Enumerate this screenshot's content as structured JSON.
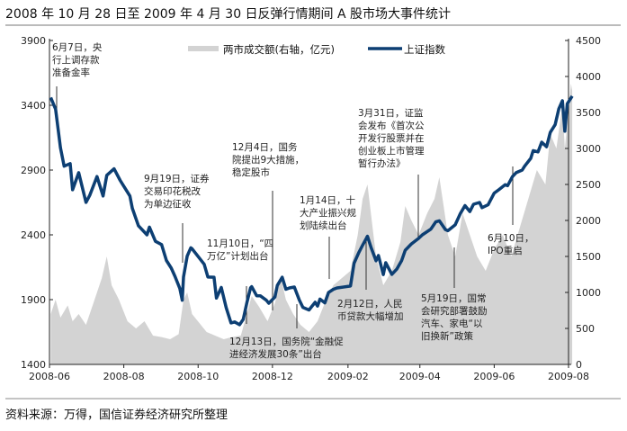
{
  "chart_data": {
    "type": "line",
    "title": "2008 年 10 月 28 日至 2009 年 4 月 30 日反弹行情期间 A 股市场大事件统计",
    "source": "资料来源：万得，国信证券经济研究所整理",
    "x_ticks": [
      "2008-06",
      "2008-08",
      "2008-10",
      "2008-12",
      "2009-02",
      "2009-04",
      "2009-06",
      "2009-08"
    ],
    "y_left": {
      "ticks": [
        "1400",
        "1900",
        "2400",
        "2900",
        "3400",
        "3900"
      ],
      "range": [
        1400,
        3900
      ]
    },
    "y_right": {
      "ticks": [
        "0",
        "500",
        "1000",
        "1500",
        "2000",
        "2500",
        "3000",
        "3500",
        "4000",
        "4500"
      ],
      "range": [
        0,
        4500
      ]
    },
    "legend": {
      "placement": "top",
      "volume_label": "两市成交额(右轴，亿元)",
      "index_label": "上证指数"
    },
    "colors": {
      "index": "#0d3f73",
      "volume": "#d3d3d3"
    },
    "series": [
      {
        "name": "上证指数",
        "axis": "left",
        "type": "line",
        "points": [
          [
            "2008-06-02",
            3460
          ],
          [
            "2008-06-06",
            3370
          ],
          [
            "2008-06-10",
            3072
          ],
          [
            "2008-06-13",
            2930
          ],
          [
            "2008-06-18",
            2950
          ],
          [
            "2008-06-20",
            2748
          ],
          [
            "2008-06-25",
            2880
          ],
          [
            "2008-07-01",
            2651
          ],
          [
            "2008-07-04",
            2704
          ],
          [
            "2008-07-10",
            2850
          ],
          [
            "2008-07-15",
            2700
          ],
          [
            "2008-07-18",
            2860
          ],
          [
            "2008-07-24",
            2910
          ],
          [
            "2008-07-29",
            2820
          ],
          [
            "2008-08-01",
            2776
          ],
          [
            "2008-08-06",
            2700
          ],
          [
            "2008-08-08",
            2605
          ],
          [
            "2008-08-13",
            2470
          ],
          [
            "2008-08-20",
            2400
          ],
          [
            "2008-08-22",
            2460
          ],
          [
            "2008-08-27",
            2350
          ],
          [
            "2008-09-01",
            2325
          ],
          [
            "2008-09-05",
            2202
          ],
          [
            "2008-09-09",
            2143
          ],
          [
            "2008-09-12",
            2080
          ],
          [
            "2008-09-16",
            1986
          ],
          [
            "2008-09-18",
            1896
          ],
          [
            "2008-09-19",
            2075
          ],
          [
            "2008-09-22",
            2236
          ],
          [
            "2008-09-25",
            2300
          ],
          [
            "2008-09-26",
            2293
          ],
          [
            "2008-10-06",
            2173
          ],
          [
            "2008-10-09",
            2074
          ],
          [
            "2008-10-14",
            2073
          ],
          [
            "2008-10-16",
            1912
          ],
          [
            "2008-10-20",
            1994
          ],
          [
            "2008-10-24",
            1839
          ],
          [
            "2008-10-28",
            1720
          ],
          [
            "2008-10-31",
            1728
          ],
          [
            "2008-11-04",
            1706
          ],
          [
            "2008-11-07",
            1748
          ],
          [
            "2008-11-10",
            1875
          ],
          [
            "2008-11-13",
            1990
          ],
          [
            "2008-11-14",
            2000
          ],
          [
            "2008-11-18",
            1930
          ],
          [
            "2008-11-21",
            1930
          ],
          [
            "2008-11-26",
            1895
          ],
          [
            "2008-11-28",
            1872
          ],
          [
            "2008-12-03",
            1920
          ],
          [
            "2008-12-05",
            2010
          ],
          [
            "2008-12-09",
            2073
          ],
          [
            "2008-12-12",
            1980
          ],
          [
            "2008-12-15",
            1990
          ],
          [
            "2008-12-19",
            1997
          ],
          [
            "2008-12-23",
            1897
          ],
          [
            "2008-12-26",
            1840
          ],
          [
            "2008-12-31",
            1820
          ],
          [
            "2009-01-05",
            1880
          ],
          [
            "2009-01-07",
            1850
          ],
          [
            "2009-01-09",
            1904
          ],
          [
            "2009-01-13",
            1875
          ],
          [
            "2009-01-16",
            1955
          ],
          [
            "2009-01-20",
            1980
          ],
          [
            "2009-01-23",
            1990
          ],
          [
            "2009-02-03",
            2005
          ],
          [
            "2009-02-06",
            2181
          ],
          [
            "2009-02-10",
            2265
          ],
          [
            "2009-02-13",
            2320
          ],
          [
            "2009-02-17",
            2389
          ],
          [
            "2009-02-20",
            2300
          ],
          [
            "2009-02-24",
            2200
          ],
          [
            "2009-02-26",
            2240
          ],
          [
            "2009-03-02",
            2093
          ],
          [
            "2009-03-04",
            2185
          ],
          [
            "2009-03-09",
            2095
          ],
          [
            "2009-03-13",
            2135
          ],
          [
            "2009-03-17",
            2200
          ],
          [
            "2009-03-20",
            2281
          ],
          [
            "2009-03-25",
            2330
          ],
          [
            "2009-03-31",
            2373
          ],
          [
            "2009-04-03",
            2400
          ],
          [
            "2009-04-10",
            2444
          ],
          [
            "2009-04-14",
            2500
          ],
          [
            "2009-04-17",
            2508
          ],
          [
            "2009-04-22",
            2440
          ],
          [
            "2009-04-24",
            2432
          ],
          [
            "2009-04-30",
            2477
          ],
          [
            "2009-05-04",
            2561
          ],
          [
            "2009-05-08",
            2626
          ],
          [
            "2009-05-12",
            2580
          ],
          [
            "2009-05-15",
            2636
          ],
          [
            "2009-05-20",
            2650
          ],
          [
            "2009-05-22",
            2610
          ],
          [
            "2009-05-27",
            2632
          ],
          [
            "2009-06-01",
            2722
          ],
          [
            "2009-06-05",
            2750
          ],
          [
            "2009-06-10",
            2787
          ],
          [
            "2009-06-12",
            2780
          ],
          [
            "2009-06-16",
            2850
          ],
          [
            "2009-06-19",
            2880
          ],
          [
            "2009-06-24",
            2900
          ],
          [
            "2009-06-26",
            2930
          ],
          [
            "2009-07-01",
            2990
          ],
          [
            "2009-07-03",
            3050
          ],
          [
            "2009-07-07",
            3040
          ],
          [
            "2009-07-10",
            3115
          ],
          [
            "2009-07-14",
            3080
          ],
          [
            "2009-07-17",
            3190
          ],
          [
            "2009-07-21",
            3250
          ],
          [
            "2009-07-24",
            3372
          ],
          [
            "2009-07-27",
            3435
          ],
          [
            "2009-07-29",
            3200
          ],
          [
            "2009-07-31",
            3412
          ],
          [
            "2009-08-04",
            3471
          ]
        ]
      },
      {
        "name": "两市成交额(右轴，亿元)",
        "axis": "right",
        "type": "area",
        "points": [
          [
            "2008-06-02",
            700
          ],
          [
            "2008-06-06",
            900
          ],
          [
            "2008-06-10",
            650
          ],
          [
            "2008-06-16",
            820
          ],
          [
            "2008-06-20",
            600
          ],
          [
            "2008-06-25",
            700
          ],
          [
            "2008-07-01",
            550
          ],
          [
            "2008-07-07",
            850
          ],
          [
            "2008-07-14",
            1200
          ],
          [
            "2008-07-18",
            1500
          ],
          [
            "2008-07-22",
            1100
          ],
          [
            "2008-07-28",
            900
          ],
          [
            "2008-08-04",
            600
          ],
          [
            "2008-08-11",
            500
          ],
          [
            "2008-08-18",
            600
          ],
          [
            "2008-08-25",
            400
          ],
          [
            "2008-09-01",
            380
          ],
          [
            "2008-09-08",
            350
          ],
          [
            "2008-09-15",
            420
          ],
          [
            "2008-09-19",
            900
          ],
          [
            "2008-09-22",
            1000
          ],
          [
            "2008-09-26",
            700
          ],
          [
            "2008-10-08",
            450
          ],
          [
            "2008-10-15",
            400
          ],
          [
            "2008-10-22",
            350
          ],
          [
            "2008-10-29",
            380
          ],
          [
            "2008-11-05",
            400
          ],
          [
            "2008-11-10",
            700
          ],
          [
            "2008-11-14",
            950
          ],
          [
            "2008-11-20",
            800
          ],
          [
            "2008-11-27",
            600
          ],
          [
            "2008-12-03",
            850
          ],
          [
            "2008-12-08",
            1200
          ],
          [
            "2008-12-12",
            900
          ],
          [
            "2008-12-18",
            700
          ],
          [
            "2008-12-24",
            550
          ],
          [
            "2008-12-31",
            450
          ],
          [
            "2009-01-07",
            600
          ],
          [
            "2009-01-14",
            900
          ],
          [
            "2009-01-20",
            1100
          ],
          [
            "2009-02-03",
            1300
          ],
          [
            "2009-02-09",
            1800
          ],
          [
            "2009-02-13",
            2300
          ],
          [
            "2009-02-17",
            2500
          ],
          [
            "2009-02-24",
            1500
          ],
          [
            "2009-03-02",
            1100
          ],
          [
            "2009-03-09",
            1300
          ],
          [
            "2009-03-16",
            1700
          ],
          [
            "2009-03-20",
            2200
          ],
          [
            "2009-03-25",
            2000
          ],
          [
            "2009-03-31",
            1800
          ],
          [
            "2009-04-07",
            2100
          ],
          [
            "2009-04-13",
            2300
          ],
          [
            "2009-04-17",
            2600
          ],
          [
            "2009-04-24",
            1800
          ],
          [
            "2009-04-30",
            1500
          ],
          [
            "2009-05-06",
            2100
          ],
          [
            "2009-05-12",
            1800
          ],
          [
            "2009-05-18",
            1500
          ],
          [
            "2009-05-25",
            1300
          ],
          [
            "2009-06-01",
            1600
          ],
          [
            "2009-06-08",
            1800
          ],
          [
            "2009-06-15",
            1500
          ],
          [
            "2009-06-22",
            1900
          ],
          [
            "2009-06-29",
            2300
          ],
          [
            "2009-07-06",
            2700
          ],
          [
            "2009-07-13",
            2500
          ],
          [
            "2009-07-17",
            3200
          ],
          [
            "2009-07-22",
            3000
          ],
          [
            "2009-07-27",
            3600
          ],
          [
            "2009-07-29",
            3000
          ],
          [
            "2009-08-03",
            3900
          ],
          [
            "2009-08-04",
            3800
          ]
        ]
      }
    ],
    "annotations": [
      {
        "date": "2008-06-07",
        "lines": [
          "6月7日，央",
          "行上调存款",
          "准备金率"
        ]
      },
      {
        "date": "2008-09-19",
        "lines": [
          "9月19日，证券",
          "交易印花税改",
          "为单边征收"
        ]
      },
      {
        "date": "2008-12-04",
        "lines": [
          "12月4日，国务",
          "院提出9大措施，",
          "稳定股市"
        ]
      },
      {
        "date": "2008-11-10",
        "lines": [
          "11月10日，“四",
          "万亿”计划出台"
        ]
      },
      {
        "date": "2008-12-13",
        "lines": [
          "12月13日，国务院“金融促",
          "进经济发展30条”出台"
        ]
      },
      {
        "date": "2009-01-14",
        "lines": [
          "1月14日，十",
          "大产业振兴规",
          "划陆续出台"
        ]
      },
      {
        "date": "2009-03-31",
        "lines": [
          "3月31日，证监",
          "会发布《首次公",
          "开发行股票并在",
          "创业板上市管理",
          "暂行办法》"
        ]
      },
      {
        "date": "2009-02-12",
        "lines": [
          "2月12日，人民",
          "币贷款大幅增加"
        ]
      },
      {
        "date": "2009-05-19",
        "lines": [
          "5月19日，国常",
          "会研究部署鼓励",
          "汽车、家电“以",
          "旧换新”政策"
        ]
      },
      {
        "date": "2009-06-10",
        "lines": [
          "6月10日，",
          "IPO重启"
        ]
      }
    ]
  }
}
